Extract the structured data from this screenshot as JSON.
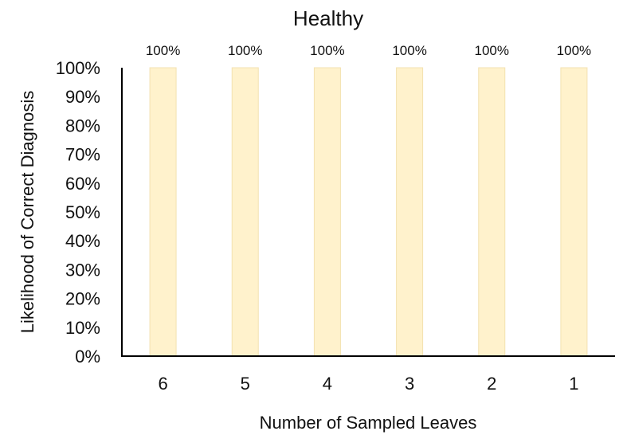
{
  "chart_data": {
    "type": "bar",
    "title": "Healthy",
    "xlabel": "Number of Sampled Leaves",
    "ylabel": "Likelihood of Correct Diagnosis",
    "categories": [
      "6",
      "5",
      "4",
      "3",
      "2",
      "1"
    ],
    "series": [
      {
        "values": [
          100,
          100,
          100,
          100,
          100,
          100
        ]
      }
    ],
    "data_labels": [
      "100%",
      "100%",
      "100%",
      "100%",
      "100%",
      "100%"
    ],
    "ylim": [
      0,
      100
    ],
    "yticks": [
      0,
      10,
      20,
      30,
      40,
      50,
      60,
      70,
      80,
      90,
      100
    ],
    "ytick_labels": [
      "0%",
      "10%",
      "20%",
      "30%",
      "40%",
      "50%",
      "60%",
      "70%",
      "80%",
      "90%",
      "100%"
    ],
    "grid": false,
    "legend": "none",
    "colors": {
      "bar_fill": "#fff2cc",
      "bar_stroke": "#f3e2b0",
      "axis": "#000000"
    }
  }
}
